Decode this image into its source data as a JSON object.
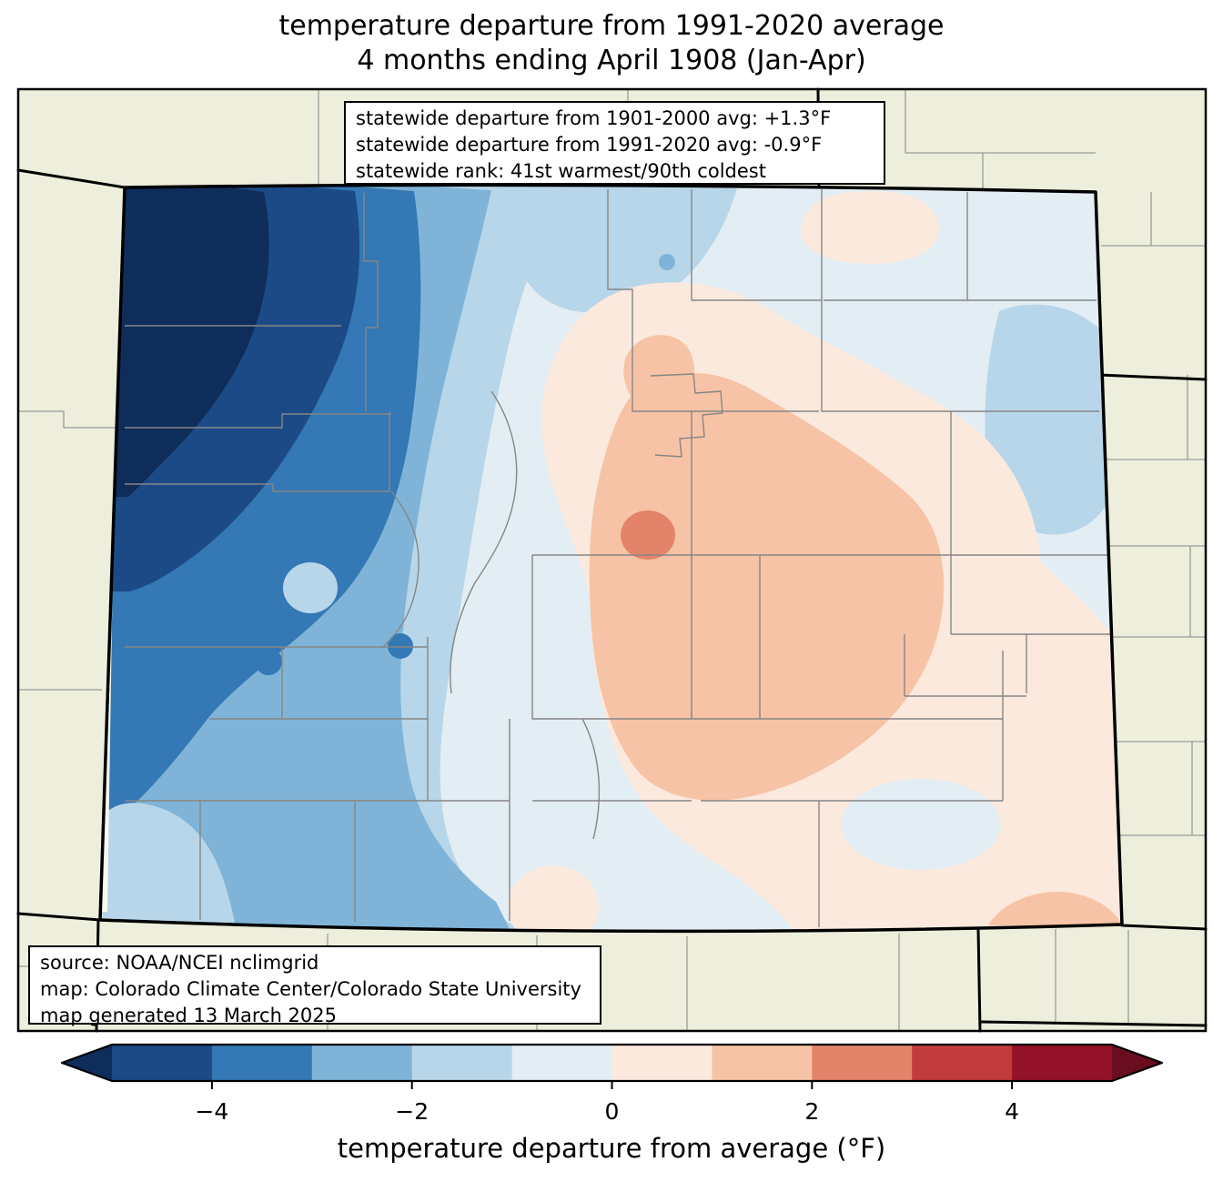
{
  "title": {
    "line1": "temperature departure from 1991-2020 average",
    "line2": "4 months ending April 1908 (Jan-Apr)"
  },
  "stats_box": {
    "line1": "statewide departure from 1901-2000 avg: +1.3°F",
    "line2": "statewide departure from 1991-2020 avg: -0.9°F",
    "line3": "statewide rank: 41st warmest/90th coldest"
  },
  "source_box": {
    "line1": "source: NOAA/NCEI nclimgrid",
    "line2": "map: Colorado Climate Center/Colorado State University",
    "line3": "map generated 13 March 2025"
  },
  "colorbar": {
    "label": "temperature departure from average (°F)",
    "units": "°F",
    "levels": [
      -5,
      -4,
      -3,
      -2,
      -1,
      0,
      1,
      2,
      3,
      4,
      5
    ],
    "ticks": [
      {
        "value": -4,
        "label": "−4"
      },
      {
        "value": -2,
        "label": "−2"
      },
      {
        "value": 0,
        "label": "0"
      },
      {
        "value": 2,
        "label": "2"
      },
      {
        "value": 4,
        "label": "4"
      }
    ],
    "segment_colors": [
      "#1c4a86",
      "#3478b5",
      "#7fb4d8",
      "#b8d6e9",
      "#e3edf4",
      "#fbe9de",
      "#f7c3a6",
      "#e3846a",
      "#c23b3c",
      "#931229"
    ],
    "under_color": "#0f2d5b",
    "over_color": "#6b0d20"
  },
  "palette": {
    "under": "#0f2d5b",
    "m5m4": "#1c4a86",
    "m4m3": "#3478b5",
    "m3m2": "#7fb4d8",
    "m2m1": "#b8d6e9",
    "m1z": "#e3edf4",
    "zp1": "#fbe9de",
    "p1p2": "#f7c3a6",
    "p2p3": "#e3846a",
    "p3p4": "#c23b3c",
    "p4p5": "#931229",
    "over": "#6b0d20",
    "outside_land": "#eeeedd",
    "county_outside": "#9b9b9b",
    "county_inside": "#868686",
    "state_border": "#000000",
    "frame": "#000000",
    "west_gap": "#fafaf2"
  },
  "map_notes": {
    "coldest_area": "northwest (below -5°F)",
    "warmest_area": "central / east-central (+2 to +3°F)"
  }
}
